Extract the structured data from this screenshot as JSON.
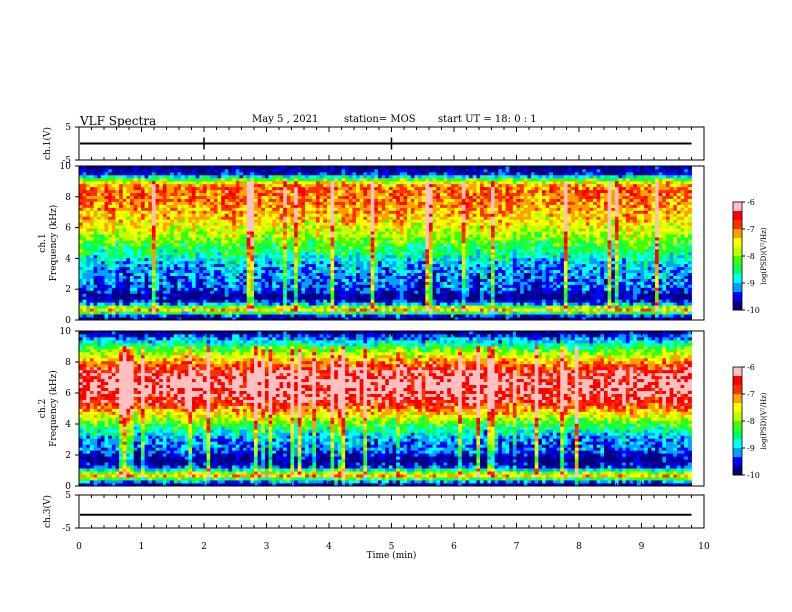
{
  "header": {
    "title": "VLF Spectra",
    "date": "May 5 , 2021",
    "station": "station= MOS",
    "start": "start UT =  18: 0 : 1"
  },
  "chart_data": {
    "type": "heatmap",
    "x_axis": {
      "label": "Time (min)",
      "range": [
        0,
        10
      ],
      "ticks": [
        "0",
        "1",
        "2",
        "3",
        "4",
        "5",
        "6",
        "7",
        "8",
        "9",
        "10"
      ],
      "data_end": 9.8
    },
    "panels": [
      {
        "id": "ch1-waveform",
        "ylabel": "ch.1(V)",
        "yrange": [
          -5,
          5
        ],
        "ticks": [
          "5",
          "-5"
        ],
        "baseline": 0
      },
      {
        "id": "ch1-spectrogram",
        "ylabel_line1": "ch.1",
        "ylabel_line2": "Frequency (kHz)",
        "yrange": [
          0,
          10
        ],
        "ticks": [
          "0",
          "2",
          "4",
          "6",
          "8",
          "10"
        ],
        "profile_desc": "log PSD by frequency",
        "profile": [
          {
            "f": 0.0,
            "v": -10.0
          },
          {
            "f": 0.3,
            "v": -9.4
          },
          {
            "f": 0.7,
            "v": -7.2
          },
          {
            "f": 1.1,
            "v": -9.3
          },
          {
            "f": 1.5,
            "v": -10.0
          },
          {
            "f": 2.0,
            "v": -9.4
          },
          {
            "f": 2.5,
            "v": -9.3
          },
          {
            "f": 3.5,
            "v": -9.1
          },
          {
            "f": 4.5,
            "v": -8.5
          },
          {
            "f": 5.5,
            "v": -7.9
          },
          {
            "f": 6.5,
            "v": -7.4
          },
          {
            "f": 7.5,
            "v": -7.1
          },
          {
            "f": 8.5,
            "v": -6.9
          },
          {
            "f": 9.0,
            "v": -7.6
          },
          {
            "f": 9.5,
            "v": -9.6
          },
          {
            "f": 10.0,
            "v": -10.0
          }
        ],
        "colorbar": {
          "label": "log(PSD)(V²/Hz)",
          "range": [
            -10,
            -6
          ],
          "ticks": [
            "-6",
            "-7",
            "-8",
            "-9",
            "-10"
          ]
        }
      },
      {
        "id": "ch2-spectrogram",
        "ylabel_line1": "ch.2",
        "ylabel_line2": "Frequency (kHz)",
        "yrange": [
          0,
          10
        ],
        "ticks": [
          "0",
          "2",
          "4",
          "6",
          "8",
          "10"
        ],
        "profile_desc": "log PSD by frequency",
        "profile": [
          {
            "f": 0.0,
            "v": -10.0
          },
          {
            "f": 0.3,
            "v": -9.2
          },
          {
            "f": 0.7,
            "v": -7.2
          },
          {
            "f": 1.2,
            "v": -9.4
          },
          {
            "f": 1.7,
            "v": -10.0
          },
          {
            "f": 2.3,
            "v": -9.3
          },
          {
            "f": 3.0,
            "v": -9.2
          },
          {
            "f": 4.0,
            "v": -8.3
          },
          {
            "f": 4.8,
            "v": -7.3
          },
          {
            "f": 5.5,
            "v": -6.5
          },
          {
            "f": 6.5,
            "v": -6.2
          },
          {
            "f": 7.5,
            "v": -6.5
          },
          {
            "f": 8.3,
            "v": -7.5
          },
          {
            "f": 9.0,
            "v": -8.4
          },
          {
            "f": 9.6,
            "v": -9.3
          },
          {
            "f": 10.0,
            "v": -10.0
          }
        ],
        "colorbar": {
          "label": "log(PSD)(V²/Hz)",
          "range": [
            -10,
            -6
          ],
          "ticks": [
            "-6",
            "-7",
            "-8",
            "-9",
            "-10"
          ]
        }
      },
      {
        "id": "ch3-waveform",
        "ylabel": "ch.3(V)",
        "yrange": [
          -5,
          5
        ],
        "ticks": [
          "5",
          "-5"
        ],
        "baseline": -1
      }
    ],
    "colormap": [
      "#000080",
      "#0000ff",
      "#00a0ff",
      "#00ffff",
      "#00ff60",
      "#40ff00",
      "#c0ff00",
      "#ffff00",
      "#ffa000",
      "#ff3000",
      "#ff0000",
      "#ffc0c0"
    ]
  }
}
